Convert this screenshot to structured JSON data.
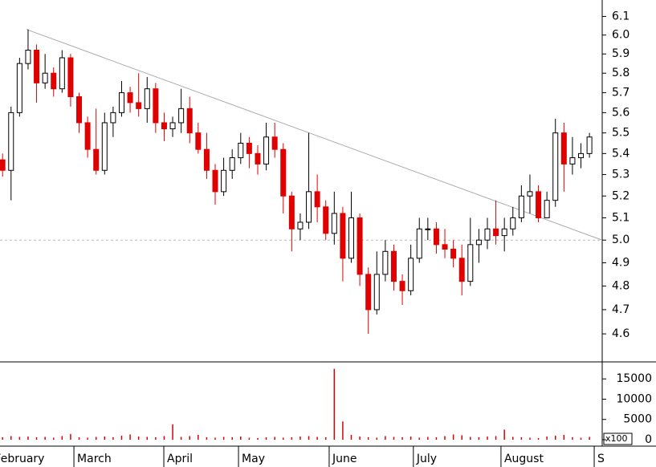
{
  "chart_data": {
    "type": "candlestick",
    "log_scale": true,
    "ylim": [
      4.49,
      6.19
    ],
    "yticks": [
      4.6,
      4.7,
      4.8,
      4.9,
      {
        "value": 5,
        "label": "5.0"
      },
      5.1,
      5.2,
      5.3,
      5.4,
      5.5,
      5.6,
      5.7,
      5.8,
      5.9,
      {
        "value": 6,
        "label": "6.0"
      },
      6.1
    ],
    "xlim": [
      -0.3,
      70.5
    ],
    "xticks": [
      {
        "value": -1.3,
        "label": "February"
      },
      {
        "value": 8.39,
        "label": "March"
      },
      {
        "value": 18.96,
        "label": "April"
      },
      {
        "value": 27.74,
        "label": "May"
      },
      {
        "value": 38.4,
        "label": "June"
      },
      {
        "value": 48.3,
        "label": "July"
      },
      {
        "value": 58.6,
        "label": "August"
      },
      {
        "value": 69.56,
        "label": "S"
      }
    ],
    "up_color": "#ffffff",
    "down_color": "#e00000",
    "open": [
      5.37,
      5.32,
      5.6,
      5.85,
      5.92,
      5.75,
      5.8,
      5.72,
      5.88,
      5.68,
      5.55,
      5.42,
      5.32,
      5.55,
      5.6,
      5.7,
      5.65,
      5.62,
      5.72,
      5.55,
      5.52,
      5.55,
      5.62,
      5.5,
      5.42,
      5.32,
      5.22,
      5.32,
      5.38,
      5.45,
      5.4,
      5.35,
      5.48,
      5.42,
      5.2,
      5.05,
      5.08,
      5.22,
      5.15,
      5.03,
      5.12,
      4.92,
      5.1,
      4.85,
      4.7,
      4.85,
      4.95,
      4.82,
      4.78,
      4.92,
      5.05,
      5.05,
      4.98,
      4.96,
      4.92,
      4.82,
      4.98,
      5.0,
      5.05,
      5.02,
      5.05,
      5.1,
      5.2,
      5.22,
      5.1,
      5.18,
      5.5,
      5.35,
      5.38,
      5.4
    ],
    "high": [
      5.4,
      5.63,
      5.88,
      6.03,
      5.95,
      5.9,
      5.83,
      5.92,
      5.9,
      5.7,
      5.58,
      5.62,
      5.6,
      5.63,
      5.76,
      5.73,
      5.8,
      5.78,
      5.75,
      5.6,
      5.58,
      5.72,
      5.68,
      5.55,
      5.5,
      5.35,
      5.38,
      5.42,
      5.5,
      5.48,
      5.44,
      5.55,
      5.55,
      5.45,
      5.22,
      5.12,
      5.5,
      5.3,
      5.18,
      5.22,
      5.15,
      5.22,
      5.12,
      4.88,
      4.95,
      5.0,
      4.98,
      4.85,
      4.98,
      5.1,
      5.1,
      5.08,
      5.05,
      5.0,
      4.98,
      5.1,
      5.05,
      5.1,
      5.18,
      5.1,
      5.15,
      5.25,
      5.3,
      5.25,
      5.22,
      5.57,
      5.55,
      5.48,
      5.45,
      5.5
    ],
    "low": [
      5.29,
      5.18,
      5.58,
      5.82,
      5.65,
      5.72,
      5.68,
      5.7,
      5.63,
      5.5,
      5.38,
      5.3,
      5.3,
      5.48,
      5.58,
      5.6,
      5.58,
      5.55,
      5.5,
      5.46,
      5.48,
      5.5,
      5.45,
      5.4,
      5.28,
      5.16,
      5.2,
      5.28,
      5.35,
      5.33,
      5.3,
      5.32,
      5.38,
      5.12,
      4.95,
      5.0,
      5.05,
      5.08,
      5.0,
      4.98,
      4.82,
      4.9,
      4.8,
      4.6,
      4.68,
      4.82,
      4.78,
      4.72,
      4.76,
      4.9,
      5.0,
      4.94,
      4.92,
      4.88,
      4.76,
      4.8,
      4.9,
      4.96,
      4.98,
      4.95,
      5.02,
      5.08,
      5.12,
      5.08,
      5.1,
      5.15,
      5.22,
      5.3,
      5.33,
      5.38
    ],
    "close": [
      5.32,
      5.6,
      5.85,
      5.92,
      5.75,
      5.8,
      5.72,
      5.88,
      5.68,
      5.55,
      5.42,
      5.32,
      5.55,
      5.6,
      5.7,
      5.65,
      5.62,
      5.72,
      5.55,
      5.52,
      5.55,
      5.62,
      5.5,
      5.42,
      5.32,
      5.22,
      5.32,
      5.38,
      5.45,
      5.4,
      5.35,
      5.48,
      5.42,
      5.2,
      5.05,
      5.08,
      5.22,
      5.15,
      5.03,
      5.12,
      4.92,
      5.1,
      4.85,
      4.7,
      4.85,
      4.95,
      4.82,
      4.78,
      4.92,
      5.05,
      5.05,
      4.98,
      4.96,
      4.92,
      4.82,
      4.98,
      5.0,
      5.05,
      5.02,
      5.05,
      5.1,
      5.2,
      5.22,
      5.1,
      5.18,
      5.5,
      5.35,
      5.38,
      5.4,
      5.48
    ],
    "trendline": {
      "x": [
        2.82,
        70.5
      ],
      "y": [
        6.03,
        5.0
      ],
      "color": "#aaaaaa"
    },
    "reference_line": {
      "value": 5.0,
      "color": "#bbbbbb"
    },
    "volume": {
      "unit": "x100",
      "color": "#e00000",
      "ylim": [
        0,
        19000
      ],
      "yticks": [
        0,
        5000,
        10000,
        15000
      ],
      "values": [
        600,
        900,
        700,
        800,
        600,
        700,
        500,
        900,
        1400,
        600,
        500,
        700,
        800,
        600,
        1000,
        1300,
        800,
        700,
        600,
        900,
        3800,
        700,
        900,
        1200,
        600,
        500,
        700,
        600,
        800,
        500,
        400,
        600,
        700,
        500,
        600,
        800,
        900,
        700,
        600,
        17500,
        4500,
        1200,
        800,
        600,
        500,
        900,
        700,
        600,
        800,
        500,
        700,
        600,
        900,
        1300,
        1100,
        700,
        600,
        800,
        900,
        2500,
        700,
        600,
        500,
        400,
        800,
        1000,
        1200,
        600,
        500,
        700
      ]
    }
  }
}
